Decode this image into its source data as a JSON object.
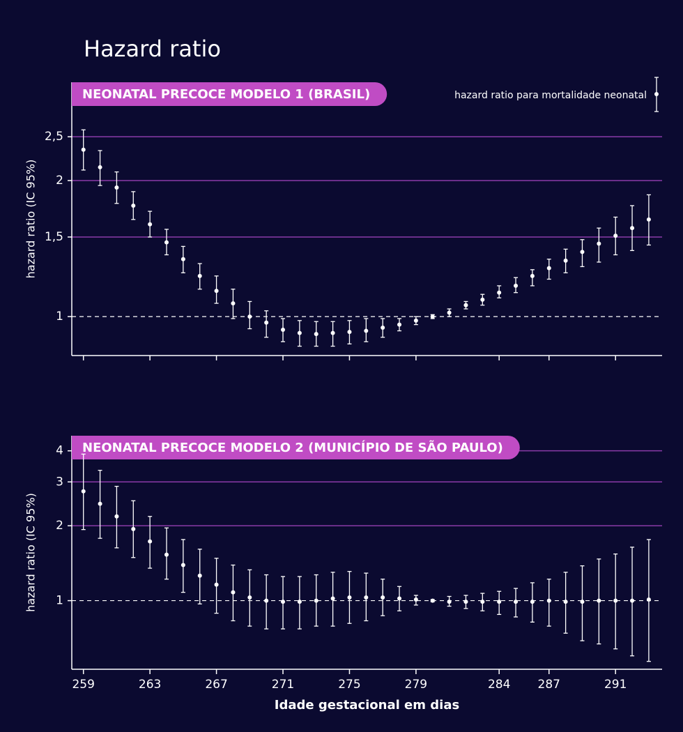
{
  "title": "Hazard ratio",
  "chart_data": [
    {
      "type": "errorbar",
      "title": "NEONATAL PRECOCE MODELO 1 (BRASIL)",
      "ylabel": "hazard ratio (IC 95%)",
      "legend": {
        "label": "hazard ratio para mortalidade neonatal",
        "position": "upper right"
      },
      "x": [
        259,
        260,
        261,
        262,
        263,
        264,
        265,
        266,
        267,
        268,
        269,
        270,
        271,
        272,
        273,
        274,
        275,
        276,
        277,
        278,
        279,
        280,
        281,
        282,
        283,
        284,
        285,
        286,
        287,
        288,
        289,
        290,
        291,
        292,
        293
      ],
      "values": [
        2.34,
        2.14,
        1.93,
        1.76,
        1.6,
        1.46,
        1.34,
        1.23,
        1.14,
        1.07,
        1.0,
        0.97,
        0.935,
        0.92,
        0.915,
        0.92,
        0.925,
        0.93,
        0.945,
        0.96,
        0.98,
        1.0,
        1.02,
        1.06,
        1.09,
        1.13,
        1.17,
        1.23,
        1.28,
        1.33,
        1.39,
        1.45,
        1.51,
        1.57,
        1.64
      ],
      "lower": [
        2.11,
        1.95,
        1.78,
        1.64,
        1.5,
        1.37,
        1.25,
        1.15,
        1.07,
        0.99,
        0.94,
        0.9,
        0.88,
        0.86,
        0.86,
        0.86,
        0.87,
        0.88,
        0.9,
        0.93,
        0.96,
        0.99,
        1.0,
        1.04,
        1.06,
        1.1,
        1.13,
        1.17,
        1.21,
        1.25,
        1.29,
        1.32,
        1.37,
        1.4,
        1.44
      ],
      "upper": [
        2.59,
        2.33,
        2.09,
        1.89,
        1.71,
        1.56,
        1.43,
        1.31,
        1.23,
        1.15,
        1.08,
        1.03,
        0.99,
        0.98,
        0.975,
        0.975,
        0.98,
        0.99,
        0.99,
        0.99,
        1.0,
        1.01,
        1.04,
        1.08,
        1.12,
        1.17,
        1.22,
        1.27,
        1.34,
        1.41,
        1.48,
        1.57,
        1.66,
        1.76,
        1.86
      ],
      "color": "#ffffff",
      "xlim": [
        258.3,
        293.8
      ],
      "xticks": [
        259,
        263,
        267,
        271,
        275,
        279,
        284,
        287,
        291
      ],
      "xticklabels": false,
      "ylim": [
        0.82,
        3.3
      ],
      "yscale": "log",
      "yticks": [
        1,
        {
          "value": 1.5,
          "label": "1,5"
        },
        2,
        {
          "value": 2.5,
          "label": "2,5"
        }
      ],
      "grid": true,
      "grid_color": "#8b3aa8",
      "reference_line": 1,
      "banner_color": "#c04cc4"
    },
    {
      "type": "errorbar",
      "title": "NEONATAL PRECOCE MODELO 2 (MUNICÍPIO DE SÃO PAULO)",
      "ylabel": "hazard ratio (IC 95%)",
      "xlabel": "Idade gestacional em dias",
      "x": [
        259,
        260,
        261,
        262,
        263,
        264,
        265,
        266,
        267,
        268,
        269,
        270,
        271,
        272,
        273,
        274,
        275,
        276,
        277,
        278,
        279,
        280,
        281,
        282,
        283,
        284,
        285,
        286,
        287,
        288,
        289,
        290,
        291,
        292,
        293
      ],
      "values": [
        2.75,
        2.45,
        2.18,
        1.94,
        1.73,
        1.53,
        1.39,
        1.26,
        1.16,
        1.08,
        1.03,
        1.0,
        0.99,
        0.99,
        1.0,
        1.02,
        1.03,
        1.03,
        1.03,
        1.02,
        1.01,
        1.0,
        0.99,
        0.99,
        0.99,
        0.99,
        0.99,
        0.99,
        1.0,
        0.99,
        0.99,
        1.0,
        1.0,
        1.0,
        1.01
      ],
      "lower": [
        1.93,
        1.78,
        1.63,
        1.49,
        1.35,
        1.22,
        1.08,
        0.97,
        0.89,
        0.83,
        0.79,
        0.77,
        0.77,
        0.77,
        0.79,
        0.79,
        0.81,
        0.83,
        0.87,
        0.91,
        0.96,
        0.99,
        0.95,
        0.93,
        0.91,
        0.88,
        0.86,
        0.82,
        0.79,
        0.74,
        0.69,
        0.67,
        0.64,
        0.6,
        0.57
      ],
      "upper": [
        3.88,
        3.34,
        2.88,
        2.52,
        2.18,
        1.96,
        1.76,
        1.61,
        1.48,
        1.39,
        1.33,
        1.27,
        1.25,
        1.25,
        1.27,
        1.3,
        1.31,
        1.29,
        1.22,
        1.14,
        1.05,
        1.01,
        1.04,
        1.05,
        1.07,
        1.09,
        1.12,
        1.18,
        1.22,
        1.3,
        1.38,
        1.47,
        1.54,
        1.64,
        1.76
      ],
      "color": "#ffffff",
      "xlim": [
        258.3,
        293.8
      ],
      "xticks": [
        259,
        263,
        267,
        271,
        275,
        279,
        284,
        287,
        291
      ],
      "xticklabels": true,
      "ylim": [
        0.53,
        4.6
      ],
      "yscale": "log",
      "yticks": [
        1,
        2,
        3,
        4
      ],
      "grid": true,
      "grid_color": "#8b3aa8",
      "reference_line": 1,
      "banner_color": "#c04cc4"
    }
  ]
}
